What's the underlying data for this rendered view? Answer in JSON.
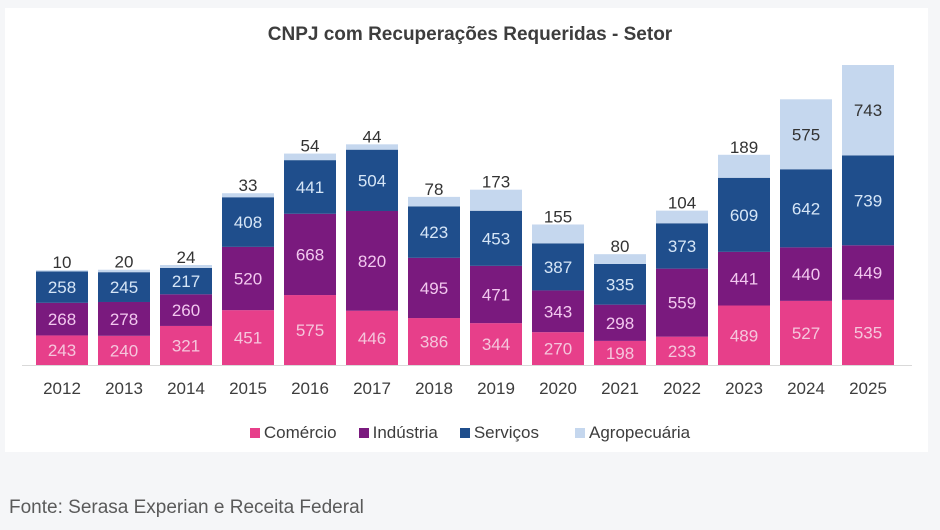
{
  "footer": {
    "source": "Fonte: Serasa Experian e Receita Federal"
  },
  "chart_data": {
    "type": "bar",
    "stacked": true,
    "title": "CNPJ com Recuperações Requeridas - Setor",
    "xlabel": "",
    "ylabel": "",
    "categories": [
      "2012",
      "2013",
      "2014",
      "2015",
      "2016",
      "2017",
      "2018",
      "2019",
      "2020",
      "2021",
      "2022",
      "2023",
      "2024",
      "2025"
    ],
    "series": [
      {
        "name": "Comércio",
        "color": "#e73f8a",
        "label_color": "#f5c6dc",
        "values": [
          243,
          240,
          321,
          451,
          575,
          446,
          386,
          344,
          270,
          198,
          233,
          489,
          527,
          535
        ]
      },
      {
        "name": "Indústria",
        "color": "#7a1a7e",
        "label_color": "#f2c8ef",
        "values": [
          268,
          278,
          260,
          520,
          668,
          820,
          495,
          471,
          343,
          298,
          559,
          441,
          440,
          449
        ]
      },
      {
        "name": "Serviços",
        "color": "#1f4e8c",
        "label_color": "#d6e6f7",
        "values": [
          258,
          245,
          217,
          408,
          441,
          504,
          423,
          453,
          387,
          335,
          373,
          609,
          642,
          739
        ]
      },
      {
        "name": "Agropecuária",
        "color": "#c5d7ee",
        "label_color": "#333333",
        "values": [
          10,
          20,
          24,
          33,
          54,
          44,
          78,
          173,
          155,
          80,
          104,
          189,
          575,
          743
        ]
      }
    ],
    "ylim": [
      0,
      2466
    ],
    "grid": false,
    "legend_position": "bottom"
  }
}
